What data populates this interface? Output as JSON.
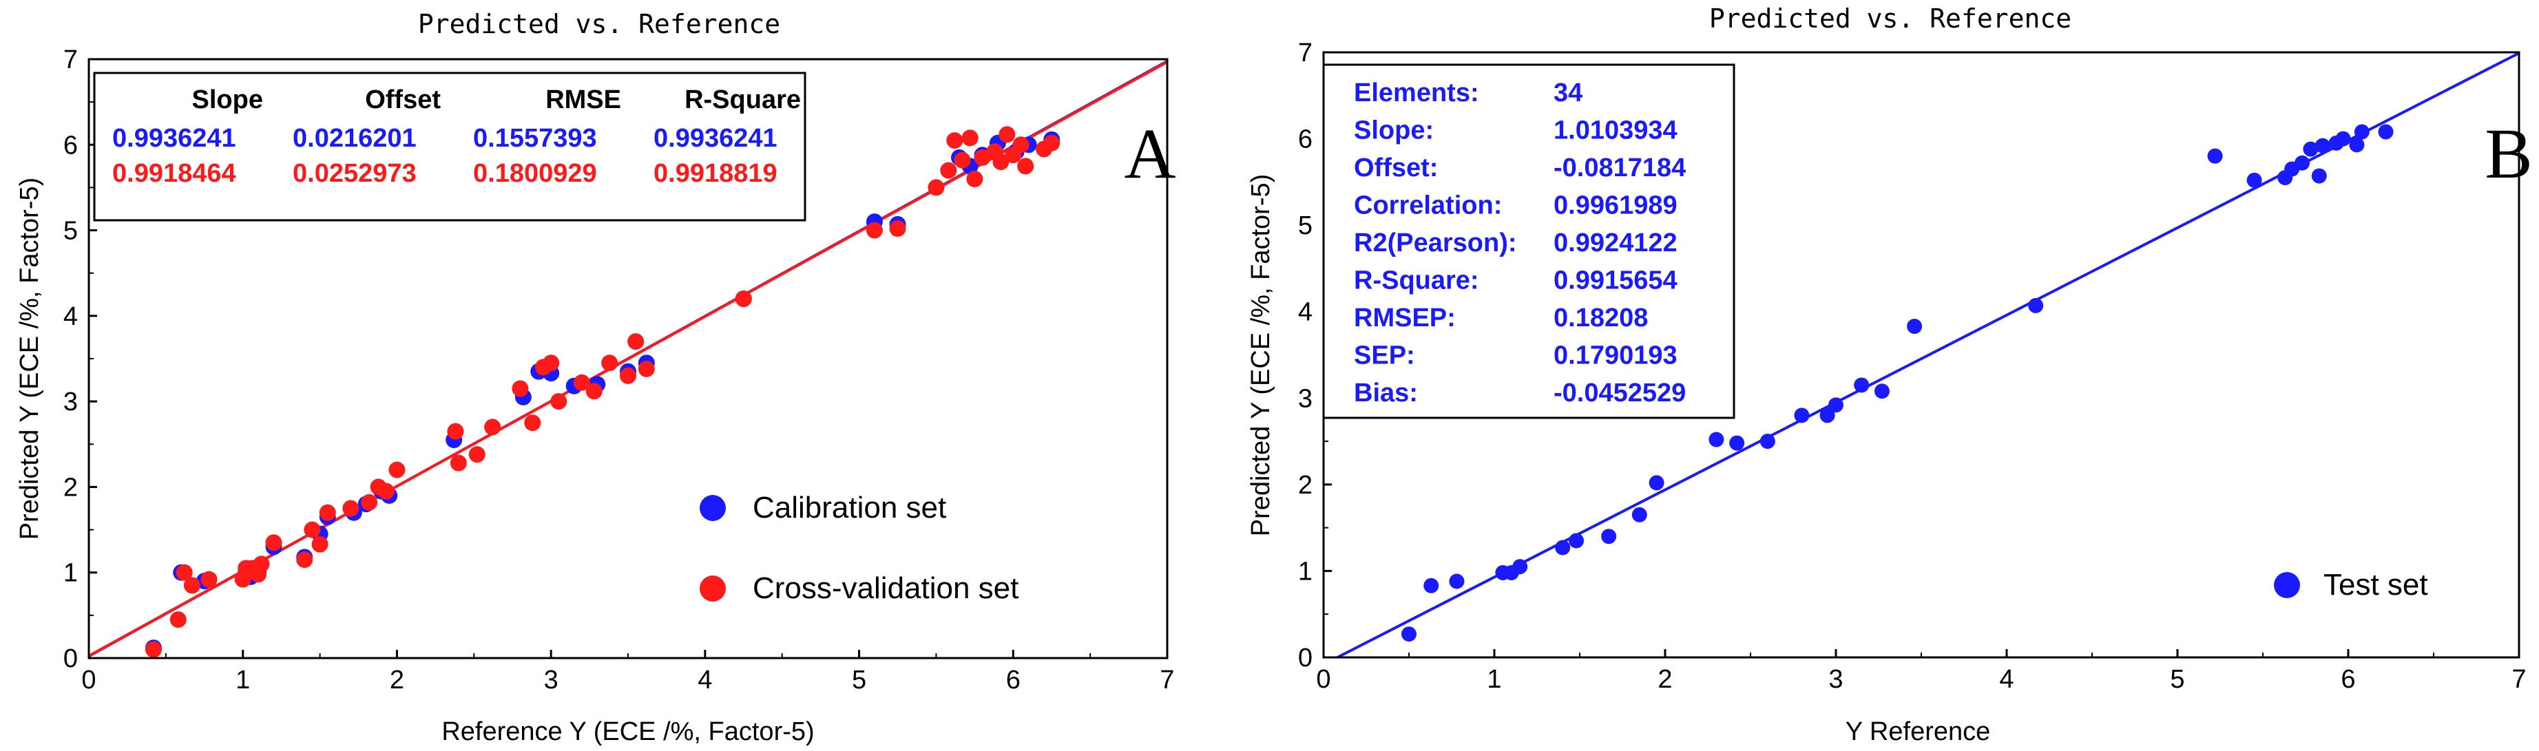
{
  "chart_data": [
    {
      "type": "scatter",
      "title": "Predicted vs. Reference",
      "panel_label": "A",
      "xlabel": "Reference Y (ECE /%, Factor-5)",
      "ylabel": "Predicted Y (ECE /%, Factor-5)",
      "xlim": [
        0,
        7
      ],
      "ylim": [
        0,
        7
      ],
      "xticks": [
        "0",
        "1",
        "2",
        "3",
        "4",
        "5",
        "6",
        "7"
      ],
      "yticks": [
        "0",
        "1",
        "2",
        "3",
        "4",
        "5",
        "6",
        "7"
      ],
      "stats_headers": [
        "Slope",
        "Offset",
        "RMSE",
        "R-Square"
      ],
      "stats_rows": [
        {
          "color": "#1a1aff",
          "values": [
            "0.9936241",
            "0.0216201",
            "0.1557393",
            "0.9936241"
          ]
        },
        {
          "color": "#ff1a1a",
          "values": [
            "0.9918464",
            "0.0252973",
            "0.1800929",
            "0.9918819"
          ]
        }
      ],
      "series": [
        {
          "name": "Calibration set",
          "color": "#1a1aff",
          "fit_line": {
            "slope": 0.9936241,
            "offset": 0.0216201
          },
          "points": [
            [
              0.42,
              0.12
            ],
            [
              0.6,
              1.0
            ],
            [
              0.75,
              0.9
            ],
            [
              1.02,
              1.0
            ],
            [
              1.05,
              0.95
            ],
            [
              1.1,
              1.02
            ],
            [
              1.2,
              1.3
            ],
            [
              1.4,
              1.18
            ],
            [
              1.5,
              1.45
            ],
            [
              1.55,
              1.65
            ],
            [
              1.72,
              1.7
            ],
            [
              1.8,
              1.8
            ],
            [
              1.9,
              1.95
            ],
            [
              1.95,
              1.9
            ],
            [
              2.37,
              2.55
            ],
            [
              2.82,
              3.05
            ],
            [
              2.92,
              3.35
            ],
            [
              3.0,
              3.33
            ],
            [
              3.15,
              3.18
            ],
            [
              3.3,
              3.2
            ],
            [
              3.5,
              3.35
            ],
            [
              3.62,
              3.45
            ],
            [
              4.25,
              4.2
            ],
            [
              5.1,
              5.1
            ],
            [
              5.25,
              5.07
            ],
            [
              5.65,
              5.85
            ],
            [
              5.72,
              5.75
            ],
            [
              5.8,
              5.88
            ],
            [
              5.9,
              6.02
            ],
            [
              6.02,
              5.92
            ],
            [
              6.1,
              6.0
            ],
            [
              6.25,
              6.06
            ]
          ]
        },
        {
          "name": "Cross-validation set",
          "color": "#ff1a1a",
          "fit_line": {
            "slope": 0.9918464,
            "offset": 0.0252973
          },
          "points": [
            [
              0.42,
              0.1
            ],
            [
              0.58,
              0.45
            ],
            [
              0.62,
              1.0
            ],
            [
              0.67,
              0.85
            ],
            [
              0.78,
              0.92
            ],
            [
              1.0,
              0.92
            ],
            [
              1.02,
              1.05
            ],
            [
              1.06,
              1.05
            ],
            [
              1.1,
              0.98
            ],
            [
              1.12,
              1.1
            ],
            [
              1.2,
              1.35
            ],
            [
              1.4,
              1.15
            ],
            [
              1.45,
              1.5
            ],
            [
              1.5,
              1.33
            ],
            [
              1.55,
              1.7
            ],
            [
              1.7,
              1.75
            ],
            [
              1.82,
              1.82
            ],
            [
              1.88,
              2.0
            ],
            [
              1.93,
              1.95
            ],
            [
              2.0,
              2.2
            ],
            [
              2.38,
              2.65
            ],
            [
              2.4,
              2.28
            ],
            [
              2.52,
              2.38
            ],
            [
              2.62,
              2.7
            ],
            [
              2.8,
              3.15
            ],
            [
              2.88,
              2.75
            ],
            [
              2.95,
              3.4
            ],
            [
              3.0,
              3.45
            ],
            [
              3.05,
              3.0
            ],
            [
              3.2,
              3.22
            ],
            [
              3.28,
              3.12
            ],
            [
              3.38,
              3.45
            ],
            [
              3.5,
              3.3
            ],
            [
              3.55,
              3.7
            ],
            [
              3.62,
              3.38
            ],
            [
              4.25,
              4.2
            ],
            [
              5.1,
              5.0
            ],
            [
              5.25,
              5.02
            ],
            [
              5.5,
              5.5
            ],
            [
              5.58,
              5.7
            ],
            [
              5.62,
              6.05
            ],
            [
              5.67,
              5.82
            ],
            [
              5.72,
              6.08
            ],
            [
              5.75,
              5.6
            ],
            [
              5.8,
              5.85
            ],
            [
              5.88,
              5.92
            ],
            [
              5.92,
              5.8
            ],
            [
              5.96,
              6.12
            ],
            [
              6.0,
              5.88
            ],
            [
              6.05,
              6.0
            ],
            [
              6.08,
              5.75
            ],
            [
              6.2,
              5.95
            ],
            [
              6.25,
              6.02
            ]
          ]
        }
      ]
    },
    {
      "type": "scatter",
      "title": "Predicted vs. Reference",
      "panel_label": "B",
      "xlabel": "Y Reference",
      "ylabel": "Predicted Y (ECE /%, Factor-5)",
      "xlim": [
        0,
        7
      ],
      "ylim": [
        0,
        7
      ],
      "xticks": [
        "0",
        "1",
        "2",
        "3",
        "4",
        "5",
        "6",
        "7"
      ],
      "yticks": [
        "0",
        "1",
        "2",
        "3",
        "4",
        "5",
        "6",
        "7"
      ],
      "stats": [
        {
          "label": "Elements:",
          "value": "34"
        },
        {
          "label": "Slope:",
          "value": "1.0103934"
        },
        {
          "label": "Offset:",
          "value": "-0.0817184"
        },
        {
          "label": "Correlation:",
          "value": "0.9961989"
        },
        {
          "label": "R2(Pearson):",
          "value": "0.9924122"
        },
        {
          "label": "R-Square:",
          "value": "0.9915654"
        },
        {
          "label": "RMSEP:",
          "value": "0.18208"
        },
        {
          "label": "SEP:",
          "value": "0.1790193"
        },
        {
          "label": "Bias:",
          "value": "-0.0452529"
        }
      ],
      "series": [
        {
          "name": "Test set",
          "color": "#1a1aff",
          "fit_line": {
            "slope": 1.0103934,
            "offset": -0.0817184
          },
          "points": [
            [
              0.5,
              0.27
            ],
            [
              0.63,
              0.83
            ],
            [
              0.78,
              0.88
            ],
            [
              1.05,
              0.98
            ],
            [
              1.1,
              0.98
            ],
            [
              1.15,
              1.05
            ],
            [
              1.4,
              1.27
            ],
            [
              1.48,
              1.35
            ],
            [
              1.67,
              1.4
            ],
            [
              1.85,
              1.65
            ],
            [
              1.95,
              2.02
            ],
            [
              2.3,
              2.52
            ],
            [
              2.42,
              2.48
            ],
            [
              2.6,
              2.5
            ],
            [
              2.8,
              2.8
            ],
            [
              2.95,
              2.8
            ],
            [
              3.0,
              2.92
            ],
            [
              3.15,
              3.15
            ],
            [
              3.27,
              3.08
            ],
            [
              3.46,
              3.83
            ],
            [
              4.17,
              4.07
            ],
            [
              5.22,
              5.8
            ],
            [
              5.45,
              5.52
            ],
            [
              5.63,
              5.55
            ],
            [
              5.67,
              5.65
            ],
            [
              5.73,
              5.72
            ],
            [
              5.78,
              5.88
            ],
            [
              5.83,
              5.57
            ],
            [
              5.85,
              5.92
            ],
            [
              5.93,
              5.95
            ],
            [
              5.97,
              6.0
            ],
            [
              6.05,
              5.93
            ],
            [
              6.08,
              6.08
            ],
            [
              6.22,
              6.08
            ]
          ]
        }
      ]
    }
  ]
}
